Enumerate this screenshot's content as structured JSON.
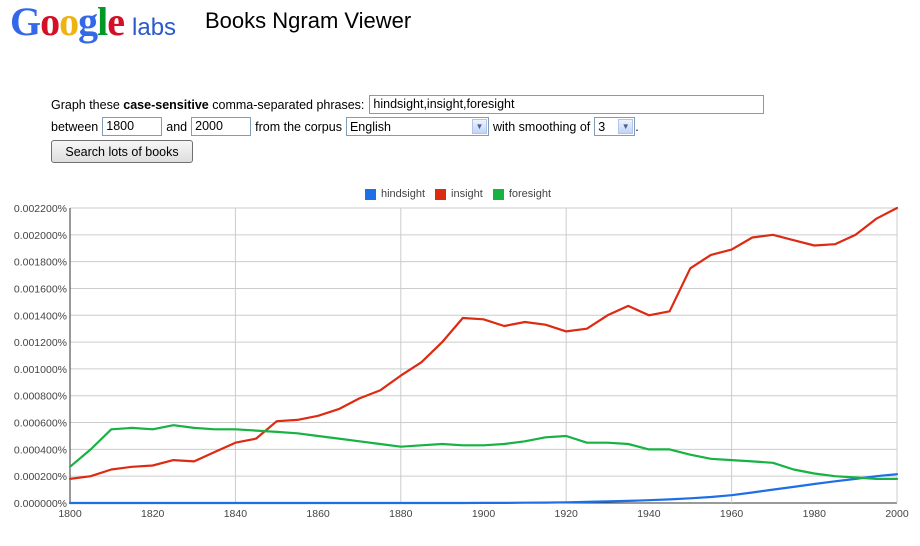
{
  "header": {
    "logo_letters": [
      "G",
      "o",
      "o",
      "g",
      "l",
      "e"
    ],
    "logo_colors": [
      "#3369e8",
      "#d50f25",
      "#eeb211",
      "#3369e8",
      "#009925",
      "#d50f25"
    ],
    "logo_suffix": "labs",
    "app_title": "Books Ngram Viewer"
  },
  "form": {
    "phrases_prefix": "Graph these",
    "phrases_bold": "case-sensitive",
    "phrases_suffix": "comma-separated phrases:",
    "phrases_value": "hindsight,insight,foresight",
    "between_label": "between",
    "start_year": "1800",
    "and_label": "and",
    "end_year": "2000",
    "corpus_label": "from the corpus",
    "corpus_value": "English",
    "smoothing_label": "with smoothing of",
    "smoothing_value": "3",
    "period": ".",
    "search_button": "Search lots of books"
  },
  "chart_data": {
    "type": "line",
    "x": [
      1800,
      1805,
      1810,
      1815,
      1820,
      1825,
      1830,
      1835,
      1840,
      1845,
      1850,
      1855,
      1860,
      1865,
      1870,
      1875,
      1880,
      1885,
      1890,
      1895,
      1900,
      1905,
      1910,
      1915,
      1920,
      1925,
      1930,
      1935,
      1940,
      1945,
      1950,
      1955,
      1960,
      1965,
      1970,
      1975,
      1980,
      1985,
      1990,
      1995,
      2000
    ],
    "series": [
      {
        "name": "hindsight",
        "color": "#1e6fe6",
        "values": [
          0.0,
          0.0,
          0.0,
          0.0,
          0.0,
          0.0,
          0.0,
          0.0,
          0.0,
          0.0,
          0.0,
          0.0,
          0.0,
          0.0,
          0.0,
          0.0,
          0.0,
          0.0,
          0.0,
          0.0,
          1e-06,
          1e-06,
          2e-06,
          3e-06,
          5e-06,
          8e-06,
          1.2e-05,
          1.6e-05,
          2.1e-05,
          2.7e-05,
          3.5e-05,
          4.5e-05,
          5.8e-05,
          7.8e-05,
          0.0001,
          0.00012,
          0.000142,
          0.000162,
          0.00018,
          0.0002,
          0.000215
        ]
      },
      {
        "name": "insight",
        "color": "#dc2b12",
        "values": [
          0.00018,
          0.0002,
          0.00025,
          0.00027,
          0.00028,
          0.00032,
          0.00031,
          0.00038,
          0.00045,
          0.00048,
          0.00061,
          0.00062,
          0.00065,
          0.0007,
          0.00078,
          0.00084,
          0.00095,
          0.00105,
          0.0012,
          0.00138,
          0.00137,
          0.00132,
          0.00135,
          0.00133,
          0.00128,
          0.0013,
          0.0014,
          0.00147,
          0.0014,
          0.00143,
          0.00175,
          0.00185,
          0.00189,
          0.00198,
          0.002,
          0.00196,
          0.00192,
          0.00193,
          0.002,
          0.00212,
          0.0022
        ]
      },
      {
        "name": "foresight",
        "color": "#18b244",
        "values": [
          0.00027,
          0.0004,
          0.00055,
          0.00056,
          0.00055,
          0.00058,
          0.00056,
          0.00055,
          0.00055,
          0.00054,
          0.00053,
          0.00052,
          0.0005,
          0.00048,
          0.00046,
          0.00044,
          0.00042,
          0.00043,
          0.00044,
          0.00043,
          0.00043,
          0.00044,
          0.00046,
          0.00049,
          0.0005,
          0.00045,
          0.00045,
          0.00044,
          0.0004,
          0.0004,
          0.00036,
          0.00033,
          0.00032,
          0.00031,
          0.0003,
          0.00025,
          0.00022,
          0.0002,
          0.00019,
          0.00018,
          0.00018
        ]
      }
    ],
    "y_ticks": [
      "0.000000%",
      "0.000200%",
      "0.000400%",
      "0.000600%",
      "0.000800%",
      "0.001000%",
      "0.001200%",
      "0.001400%",
      "0.001600%",
      "0.001800%",
      "0.002000%",
      "0.002200%"
    ],
    "x_ticks": [
      "1800",
      "1820",
      "1840",
      "1860",
      "1880",
      "1900",
      "1920",
      "1940",
      "1960",
      "1980",
      "2000"
    ],
    "xlim": [
      1800,
      2000
    ],
    "ylim": [
      0,
      0.0022
    ],
    "grid": true,
    "legend_position": "top-center"
  }
}
